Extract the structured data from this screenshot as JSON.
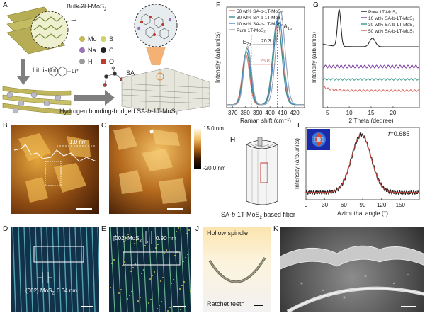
{
  "panels": {
    "A": {
      "label": "A",
      "bulk": "Bulk 2H-MoS",
      "bulk_sub": "2",
      "legend": [
        {
          "sym": "Mo",
          "color": "#c6b95a"
        },
        {
          "sym": "S",
          "color": "#cfd36a"
        },
        {
          "sym": "Na",
          "color": "#9b72b4"
        },
        {
          "sym": "C",
          "color": "#222222"
        },
        {
          "sym": "H",
          "color": "#9a9a9a"
        },
        {
          "sym": "O",
          "color": "#c0392b"
        }
      ],
      "lithiation": "Lithiation",
      "li": "Li⁺",
      "sa": "SA",
      "caption": "Hydrogen  bonding-bridged SA-",
      "caption_b": "b",
      "caption_end": "-1T-MoS",
      "caption_sub": "2"
    },
    "B": {
      "label": "B",
      "annot": "1.0 nm"
    },
    "C": {
      "label": "C",
      "cbar_max": "15.0 nm",
      "cbar_min": "-20.0 nm"
    },
    "D": {
      "label": "D",
      "plane": "(002) MoS",
      "plane_sub": "2",
      "spacing": "0.64 nm"
    },
    "E": {
      "label": "E",
      "plane": "[002] MoS",
      "plane_sub": "2",
      "spacing": "0.90 nm"
    },
    "H": {
      "label": "H",
      "caption": "SA-",
      "caption_b": "b",
      "caption_end": "-1T-MoS",
      "caption_sub": "2",
      "caption_tail": " based fiber"
    },
    "J": {
      "label": "J",
      "top": "Hollow spindle",
      "bottom": "Ratchet teeth"
    },
    "K": {
      "label": "K"
    }
  },
  "chart_data": [
    {
      "id": "F",
      "type": "line",
      "label": "F",
      "xlabel": "Raman shift (cm⁻¹)",
      "ylabel": "Intensity (arb.units)",
      "xlim": [
        365,
        428
      ],
      "xticks": [
        370,
        380,
        390,
        400,
        410,
        420
      ],
      "legend": [
        "50 wt% SA-b-1T-MoS₂",
        "30 wt% SA-b-1T-MoS₂",
        "10 wt% SA-b-1T-MoS₂",
        "Pure 1T-MoS₂"
      ],
      "legend_placement": "top-left",
      "peak_labels": {
        "E2g": "E",
        "E2g_sub": "2g",
        "A1g": "A",
        "A1g_sub": "1g"
      },
      "shifts": [
        "20.3",
        "26.8"
      ],
      "series": [
        {
          "name": "50 wt% SA-b-1T-MoS₂",
          "color": "#e07a6a",
          "e_center": 380.5,
          "e_amp": 0.5,
          "a_center": 406.5,
          "a_amp": 0.8
        },
        {
          "name": "30 wt% SA-b-1T-MoS₂",
          "color": "#3c8f8a",
          "e_center": 381.0,
          "e_amp": 0.53,
          "a_center": 406.0,
          "a_amp": 0.84
        },
        {
          "name": "10 wt% SA-b-1T-MoS₂",
          "color": "#4d88c6",
          "e_center": 381.5,
          "e_amp": 0.56,
          "a_center": 407.0,
          "a_amp": 0.89
        },
        {
          "name": "Pure 1T-MoS₂",
          "color": "#9aa7b3",
          "e_center": 382.0,
          "e_amp": 0.58,
          "a_center": 408.5,
          "a_amp": 0.93
        }
      ]
    },
    {
      "id": "G",
      "type": "line",
      "label": "G",
      "xlabel": "2 Theta (degree)",
      "ylabel": "Intensity (arb.units)",
      "xlim": [
        4,
        26
      ],
      "xticks": [
        5,
        10,
        15,
        20
      ],
      "legend": [
        "Pure 1T-MoS₂",
        "10 wt% SA-b-1T-MoS₂",
        "30 wt% SA-b-1T-MoS₂",
        "50 wt% SA-b-1T-MoS₂"
      ],
      "legend_placement": "top-right",
      "series": [
        {
          "name": "Pure 1T-MoS₂",
          "color": "#1a1a1a"
        },
        {
          "name": "10 wt% SA-b-1T-MoS₂",
          "color": "#7a3fa0"
        },
        {
          "name": "30 wt% SA-b-1T-MoS₂",
          "color": "#3c9a8c"
        },
        {
          "name": "50 wt% SA-b-1T-MoS₂",
          "color": "#d8645a"
        }
      ]
    },
    {
      "id": "I",
      "type": "line",
      "label": "I",
      "xlabel": "Azimuthal angle (°)",
      "ylabel": "Intensity (arb.units)",
      "xlim": [
        0,
        180
      ],
      "xticks": [
        0,
        30,
        60,
        90,
        120,
        150
      ],
      "annotation": "f",
      "annotation_val": "=0.685",
      "series": [
        {
          "name": "measured",
          "color": "#222222",
          "center": 88,
          "width": 22
        },
        {
          "name": "fit",
          "color": "#d0453b",
          "center": 88,
          "width": 22
        }
      ]
    }
  ]
}
